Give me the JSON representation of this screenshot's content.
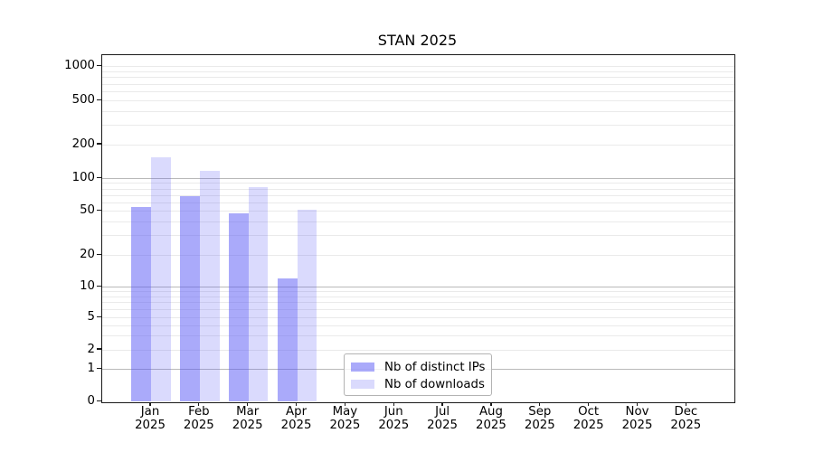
{
  "title": "STAN 2025",
  "y_axis": {
    "ticks": [
      {
        "label": "1000",
        "value": 1000
      },
      {
        "label": "500",
        "value": 500
      },
      {
        "label": "200",
        "value": 200
      },
      {
        "label": "100",
        "value": 100
      },
      {
        "label": "50",
        "value": 50
      },
      {
        "label": "20",
        "value": 20
      },
      {
        "label": "10",
        "value": 10
      },
      {
        "label": "5",
        "value": 5
      },
      {
        "label": "2",
        "value": 2
      },
      {
        "label": "1",
        "value": 1
      },
      {
        "label": "0",
        "value": 0
      }
    ]
  },
  "x_axis": {
    "months": [
      {
        "month": "Jan",
        "year": "2025"
      },
      {
        "month": "Feb",
        "year": "2025"
      },
      {
        "month": "Mar",
        "year": "2025"
      },
      {
        "month": "Apr",
        "year": "2025"
      },
      {
        "month": "May",
        "year": "2025"
      },
      {
        "month": "Jun",
        "year": "2025"
      },
      {
        "month": "Jul",
        "year": "2025"
      },
      {
        "month": "Aug",
        "year": "2025"
      },
      {
        "month": "Sep",
        "year": "2025"
      },
      {
        "month": "Oct",
        "year": "2025"
      },
      {
        "month": "Nov",
        "year": "2025"
      },
      {
        "month": "Dec",
        "year": "2025"
      }
    ]
  },
  "legend": {
    "items": [
      {
        "label": "Nb of distinct IPs",
        "series": "ips"
      },
      {
        "label": "Nb of downloads",
        "series": "downloads"
      }
    ]
  },
  "colors": {
    "bar_base": "#5555f5",
    "ips_alpha": 0.5,
    "downloads_alpha": 0.22,
    "grid_major": "#b9b9b9",
    "grid_minor": "#eaeaea"
  },
  "chart_data": {
    "type": "bar",
    "title": "STAN 2025",
    "categories": [
      "Jan 2025",
      "Feb 2025",
      "Mar 2025",
      "Apr 2025",
      "May 2025",
      "Jun 2025",
      "Jul 2025",
      "Aug 2025",
      "Sep 2025",
      "Oct 2025",
      "Nov 2025",
      "Dec 2025"
    ],
    "series": [
      {
        "name": "Nb of distinct IPs",
        "values": [
          55,
          69,
          48,
          12,
          0,
          0,
          0,
          0,
          0,
          0,
          0,
          0
        ]
      },
      {
        "name": "Nb of downloads",
        "values": [
          155,
          118,
          84,
          51,
          0,
          0,
          0,
          0,
          0,
          0,
          0,
          0
        ]
      }
    ],
    "yscale": "symlog",
    "yticks": [
      0,
      1,
      2,
      5,
      10,
      20,
      50,
      100,
      200,
      500,
      1000
    ],
    "ylim": [
      0,
      1400
    ],
    "xlabel": "",
    "ylabel": "",
    "grid": "horizontal, major and minor",
    "legend_position": "inside plot, lower center-left"
  }
}
